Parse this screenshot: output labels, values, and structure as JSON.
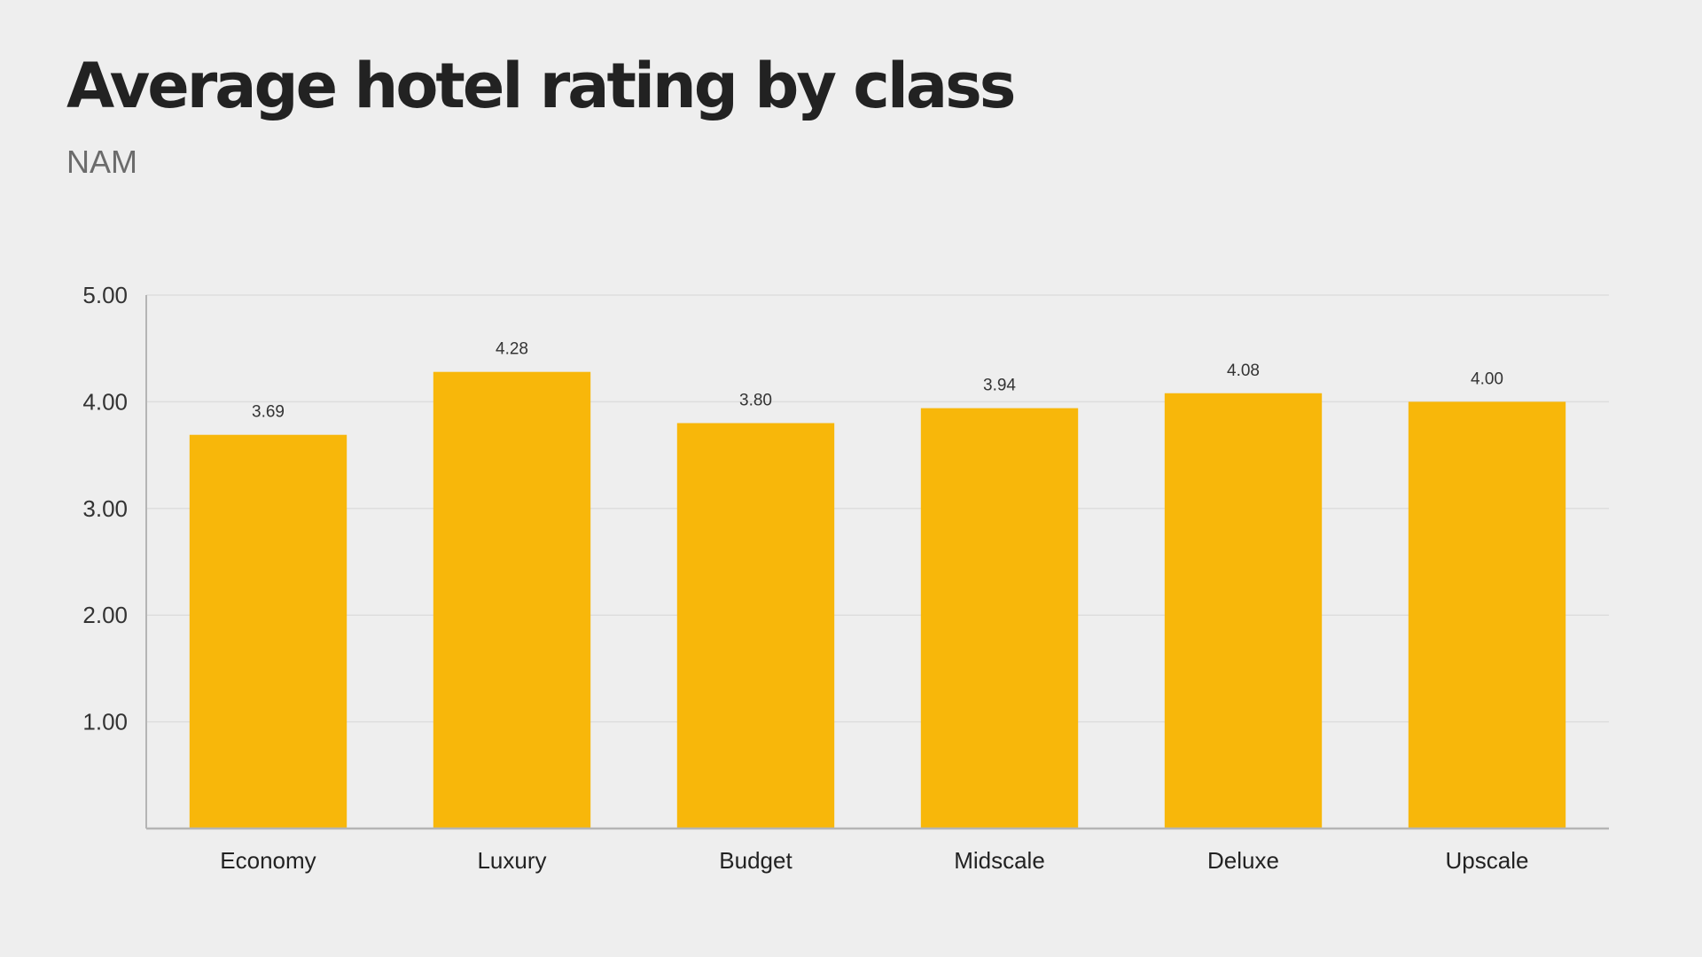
{
  "chart_data": {
    "type": "bar",
    "title": "Average hotel rating by class",
    "subtitle": "NAM",
    "categories": [
      "Economy",
      "Luxury",
      "Budget",
      "Midscale",
      "Deluxe",
      "Upscale"
    ],
    "values": [
      3.69,
      4.28,
      3.8,
      3.94,
      4.08,
      4.0
    ],
    "value_labels": [
      "3.69",
      "4.28",
      "3.80",
      "3.94",
      "4.08",
      "4.00"
    ],
    "yticks": [
      1.0,
      2.0,
      3.0,
      4.0,
      5.0
    ],
    "ytick_labels": [
      "1.00",
      "2.00",
      "3.00",
      "4.00",
      "5.00"
    ],
    "ylim": [
      0,
      5
    ],
    "grid": true,
    "legend": "none",
    "colors": {
      "bar": "#f8b70a",
      "grid": "#dddddd",
      "axis": "#b5b5b5"
    }
  }
}
